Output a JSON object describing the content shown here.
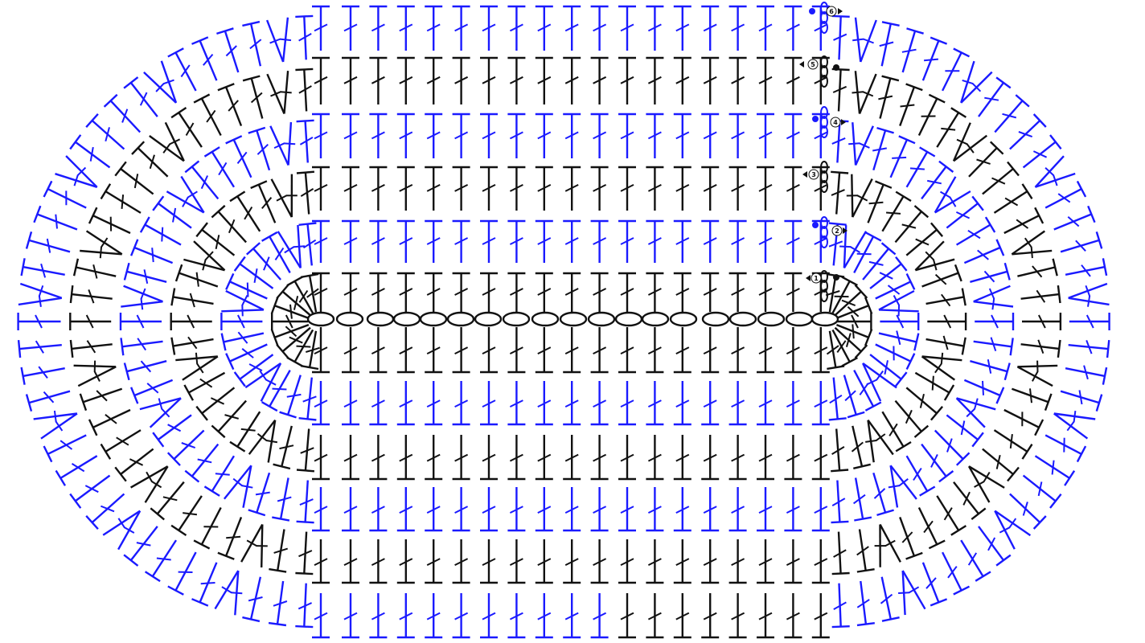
{
  "diagram": {
    "title": "",
    "colors": {
      "background": "#ffffff",
      "round_a": "#1a1aff",
      "round_b": "#111111"
    },
    "stitch_symbols": {
      "foundation": "chain",
      "body": "double-crochet",
      "increase": "double-crochet-increase-v",
      "turning": "chain-3"
    },
    "foundation_chain_count": 18,
    "rounds": [
      {
        "label": "1",
        "color": "#111111",
        "start": "right",
        "direction": "left"
      },
      {
        "label": "2",
        "color": "#1a1aff",
        "start": "right",
        "direction": "right"
      },
      {
        "label": "3",
        "color": "#111111",
        "start": "right",
        "direction": "left"
      },
      {
        "label": "4",
        "color": "#1a1aff",
        "start": "right",
        "direction": "right"
      },
      {
        "label": "5",
        "color": "#111111",
        "start": "right",
        "direction": "left"
      },
      {
        "label": "6",
        "color": "#1a1aff",
        "start": "right",
        "direction": "right"
      }
    ]
  }
}
